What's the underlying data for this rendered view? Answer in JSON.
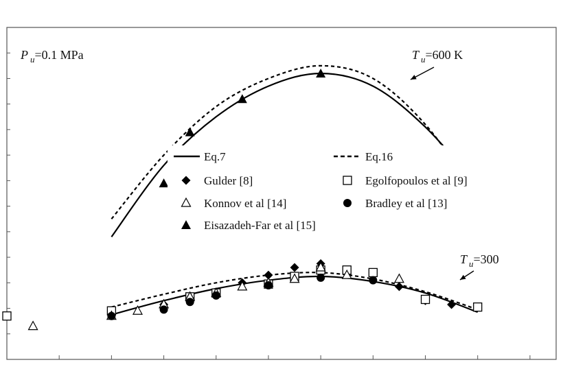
{
  "chart_data": {
    "type": "scatter",
    "title": "",
    "xlabel": "",
    "ylabel": "",
    "xlim": [
      0.6,
      1.65
    ],
    "ylim": [
      20,
      150
    ],
    "axis_ticks_labeled": false,
    "grid": false,
    "legend_position": "center",
    "annotations": {
      "pressure": {
        "main": "P",
        "sub": "u",
        "rest": "=0.1 MPa"
      },
      "t600": {
        "main": "T",
        "sub": "u",
        "rest": "=600 K"
      },
      "t300": {
        "main": "T",
        "sub": "u",
        "rest": "=300"
      }
    },
    "series": [
      {
        "name": "Eq.7",
        "kind": "line-solid",
        "x": [
          0.8,
          0.9,
          1.0,
          1.1,
          1.2,
          1.3,
          1.4,
          1.5
        ],
        "y": [
          68,
          96,
          115,
          127,
          132,
          127,
          111,
          88
        ]
      },
      {
        "name": "Eq.16",
        "kind": "line-dashed",
        "x": [
          0.8,
          0.9,
          1.0,
          1.1,
          1.2,
          1.3,
          1.4,
          1.5
        ],
        "y": [
          75,
          100,
          119,
          130,
          135,
          130,
          112,
          84
        ]
      },
      {
        "name": "Eq.7",
        "kind": "line-solid",
        "x": [
          0.8,
          0.9,
          1.0,
          1.1,
          1.2,
          1.3,
          1.4,
          1.5
        ],
        "y": [
          37.5,
          43,
          47.7,
          51,
          52.5,
          50.5,
          46,
          38.5
        ]
      },
      {
        "name": "Eq.16",
        "kind": "line-dashed",
        "x": [
          0.8,
          0.9,
          1.0,
          1.1,
          1.2,
          1.3,
          1.4,
          1.5
        ],
        "y": [
          40.5,
          45.5,
          50,
          53,
          54,
          51.5,
          46.5,
          39.5
        ]
      },
      {
        "name": "Gulder [8]",
        "marker": "diamond",
        "x": [
          0.9,
          1.0,
          1.05,
          1.1,
          1.15,
          1.2,
          1.3,
          1.35,
          1.4,
          1.45
        ],
        "y": [
          41.5,
          46,
          50,
          53,
          56,
          57.5,
          53,
          48.5,
          43,
          41.5
        ]
      },
      {
        "name": "Egolfopoulos et al [9]",
        "marker": "square",
        "x": [
          0.6,
          0.8,
          0.95,
          1.0,
          1.1,
          1.15,
          1.2,
          1.25,
          1.3,
          1.4,
          1.5
        ],
        "y": [
          37,
          39,
          44.5,
          46,
          49.5,
          52.5,
          55,
          55,
          54,
          43.5,
          40.5
        ]
      },
      {
        "name": "Konnov et al [14]",
        "marker": "triangle-open",
        "x": [
          0.65,
          0.8,
          0.85,
          0.9,
          0.95,
          1.0,
          1.05,
          1.1,
          1.15,
          1.2,
          1.25,
          1.35
        ],
        "y": [
          33,
          37,
          39,
          41.5,
          44.5,
          46,
          48.5,
          50,
          51.5,
          56,
          53,
          51.5
        ]
      },
      {
        "name": "Bradley et al [13]",
        "marker": "circle",
        "x": [
          0.8,
          0.9,
          0.95,
          1.0,
          1.1,
          1.2,
          1.3
        ],
        "y": [
          37,
          39.5,
          42.5,
          45,
          49,
          52,
          51
        ]
      },
      {
        "name": "Eisazadeh-Far et al [15]",
        "marker": "triangle-filled",
        "x": [
          0.9,
          0.95,
          1.05,
          1.2
        ],
        "y": [
          89,
          109,
          122,
          132
        ]
      }
    ],
    "legend": [
      {
        "name": "Eq.7",
        "symbol": "line-solid"
      },
      {
        "name": "Eq.16",
        "symbol": "line-dashed"
      },
      {
        "name": "Gulder [8]",
        "symbol": "diamond"
      },
      {
        "name": "Egolfopoulos et al [9]",
        "symbol": "square"
      },
      {
        "name": "Konnov et al [14]",
        "symbol": "triangle-open"
      },
      {
        "name": "Bradley et al [13]",
        "symbol": "circle"
      },
      {
        "name": "Eisazadeh-Far et al [15]",
        "symbol": "triangle-filled"
      }
    ],
    "x_major_ticks": [
      0.7,
      0.8,
      0.9,
      1.0,
      1.1,
      1.2,
      1.3,
      1.4,
      1.5,
      1.6
    ],
    "x_labeled_ticks": [],
    "y_ticks": [
      30,
      40,
      50,
      60,
      70,
      80,
      90,
      100,
      110,
      120,
      130,
      140
    ]
  }
}
